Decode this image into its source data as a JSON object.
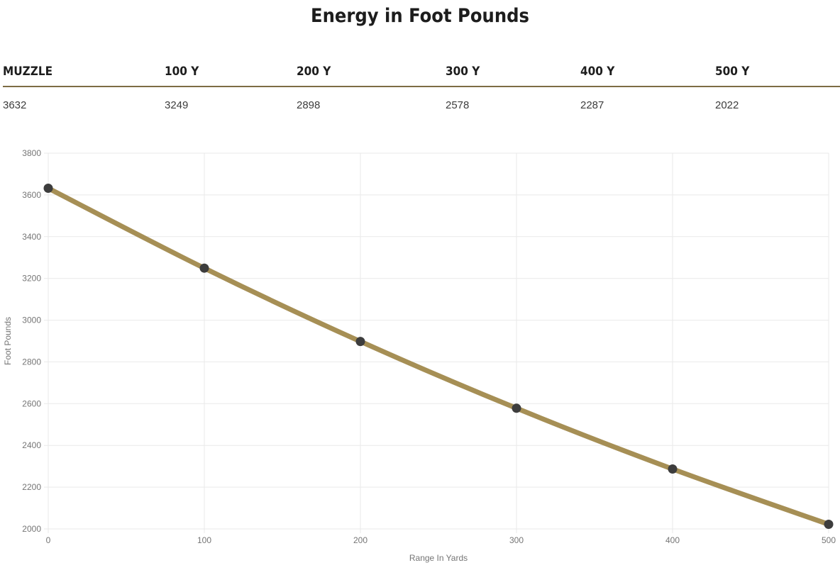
{
  "page": {
    "title": "Energy in Foot Pounds"
  },
  "table": {
    "headers": [
      "MUZZLE",
      "100 Y",
      "200 Y",
      "300 Y",
      "400 Y",
      "500 Y"
    ],
    "values": [
      "3632",
      "3249",
      "2898",
      "2578",
      "2287",
      "2022"
    ]
  },
  "chart_data": {
    "type": "line",
    "title": "Energy in Foot Pounds",
    "x": [
      0,
      100,
      200,
      300,
      400,
      500
    ],
    "series": [
      {
        "name": "Energy in Foot Pounds",
        "values": [
          3632,
          3249,
          2898,
          2578,
          2287,
          2022
        ]
      }
    ],
    "xlabel": "Range In Yards",
    "ylabel": "Foot Pounds",
    "xlim": [
      0,
      500
    ],
    "ylim": [
      2000,
      3800
    ],
    "xticks": [
      0,
      100,
      200,
      300,
      400,
      500
    ],
    "yticks": [
      2000,
      2200,
      2400,
      2600,
      2800,
      3000,
      3200,
      3400,
      3600,
      3800
    ],
    "grid": true,
    "legend": "none",
    "colors": {
      "line": "#a68f55",
      "point": "#3d3d3d",
      "grid": "#e9e9e9",
      "tick_text": "#757575",
      "axis_title_text": "#757575"
    }
  },
  "colors": {
    "accent_rule": "#7d6c44",
    "heading_text": "#1d1d1d",
    "value_text": "#3c3c3c",
    "background": "#ffffff"
  }
}
